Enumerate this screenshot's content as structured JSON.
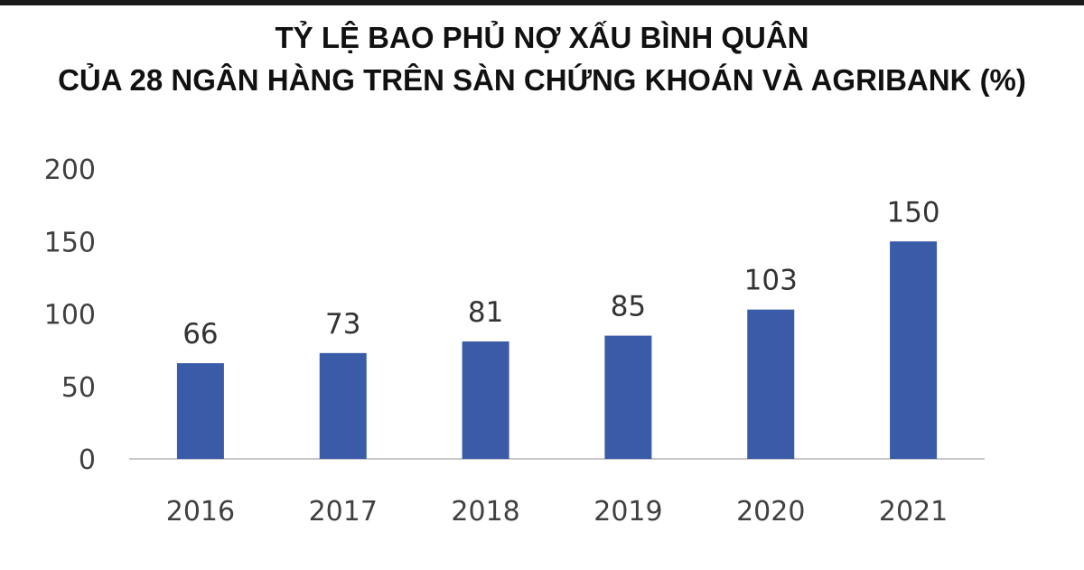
{
  "chart_data": {
    "type": "bar",
    "title_lines": [
      "TỶ LỆ BAO PHỦ NỢ XẤU BÌNH QUÂN",
      "CỦA 28 NGÂN HÀNG TRÊN SÀN CHỨNG KHOÁN VÀ AGRIBANK (%)"
    ],
    "categories": [
      "2016",
      "2017",
      "2018",
      "2019",
      "2020",
      "2021"
    ],
    "values": [
      66,
      73,
      81,
      85,
      103,
      150
    ],
    "data_labels": [
      "66",
      "73",
      "81",
      "85",
      "103",
      "150"
    ],
    "y_ticks": [
      0,
      50,
      100,
      150,
      200
    ],
    "ylim": [
      0,
      200
    ],
    "xlabel": "",
    "ylabel": "",
    "grid": false,
    "legend": "none",
    "bar_color": "#3a5ba8",
    "axis_color": "#c8c8c8"
  }
}
